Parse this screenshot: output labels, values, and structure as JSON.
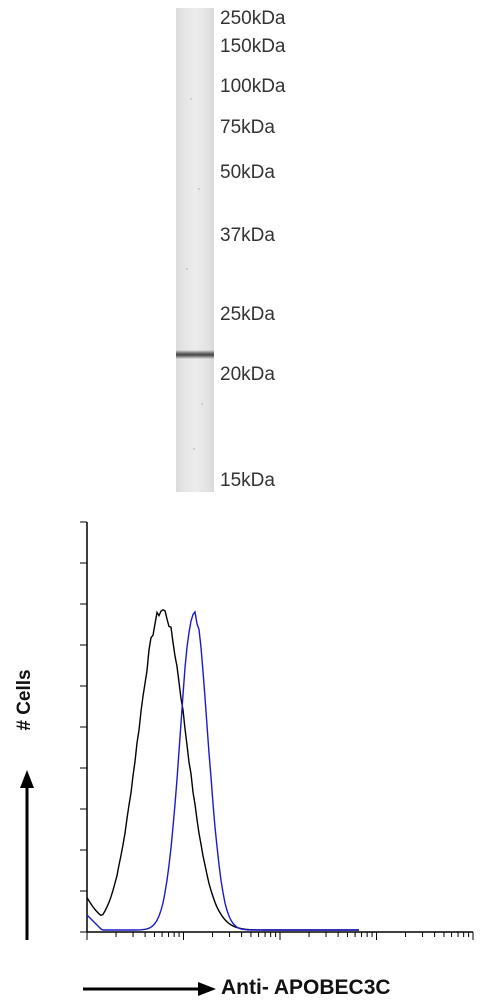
{
  "western_blot": {
    "markers": [
      {
        "label": "250kDa"
      },
      {
        "label": "150kDa"
      },
      {
        "label": "100kDa"
      },
      {
        "label": "75kDa"
      },
      {
        "label": "50kDa"
      },
      {
        "label": "37kDa"
      },
      {
        "label": "25kDa"
      },
      {
        "label": "20kDa"
      },
      {
        "label": "15kDa"
      }
    ]
  },
  "flow_cytometry": {
    "y_axis_title": "# Cells",
    "x_axis_title": "Anti- APOBEC3C",
    "colors": {
      "control": "#000000",
      "stained": "#1a1acc",
      "axis": "#000000"
    }
  }
}
